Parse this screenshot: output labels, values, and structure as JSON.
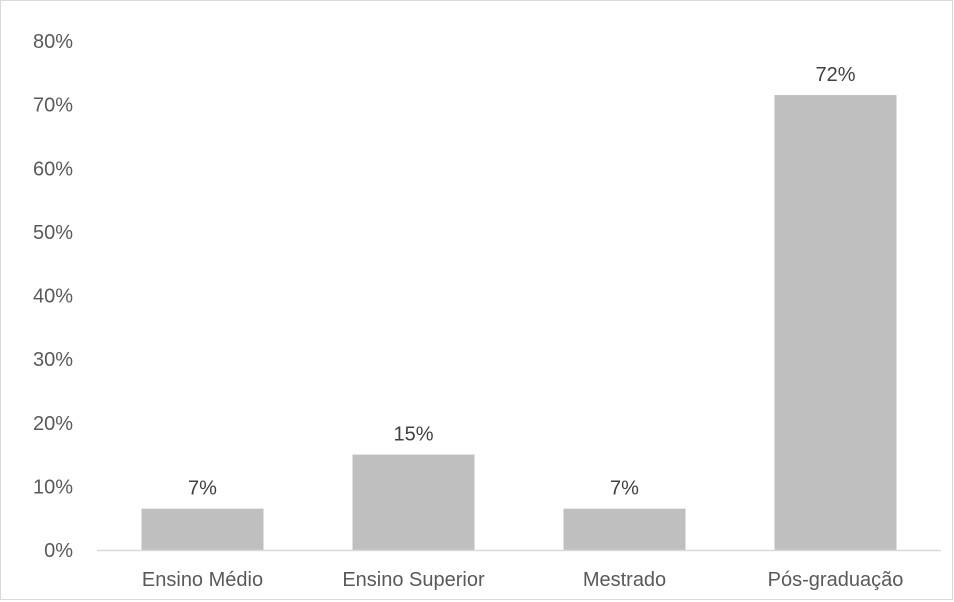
{
  "chart_data": {
    "type": "bar",
    "categories": [
      "Ensino Médio",
      "Ensino Superior",
      "Mestrado",
      "Pós-graduação"
    ],
    "values": [
      0.065,
      0.15,
      0.065,
      0.715
    ],
    "data_labels": [
      "7%",
      "15%",
      "7%",
      "72%"
    ],
    "yticks": [
      0,
      0.1,
      0.2,
      0.3,
      0.4,
      0.5,
      0.6,
      0.7,
      0.8
    ],
    "ytick_labels": [
      "0%",
      "10%",
      "20%",
      "30%",
      "40%",
      "50%",
      "60%",
      "70%",
      "80%"
    ],
    "ylim": [
      0,
      0.8
    ],
    "title": "",
    "xlabel": "",
    "ylabel": "",
    "grid": false,
    "legend": "none",
    "colors": {
      "bar": "#bfbfbf",
      "axis": "#d9d9d9",
      "text": "#595959"
    }
  }
}
